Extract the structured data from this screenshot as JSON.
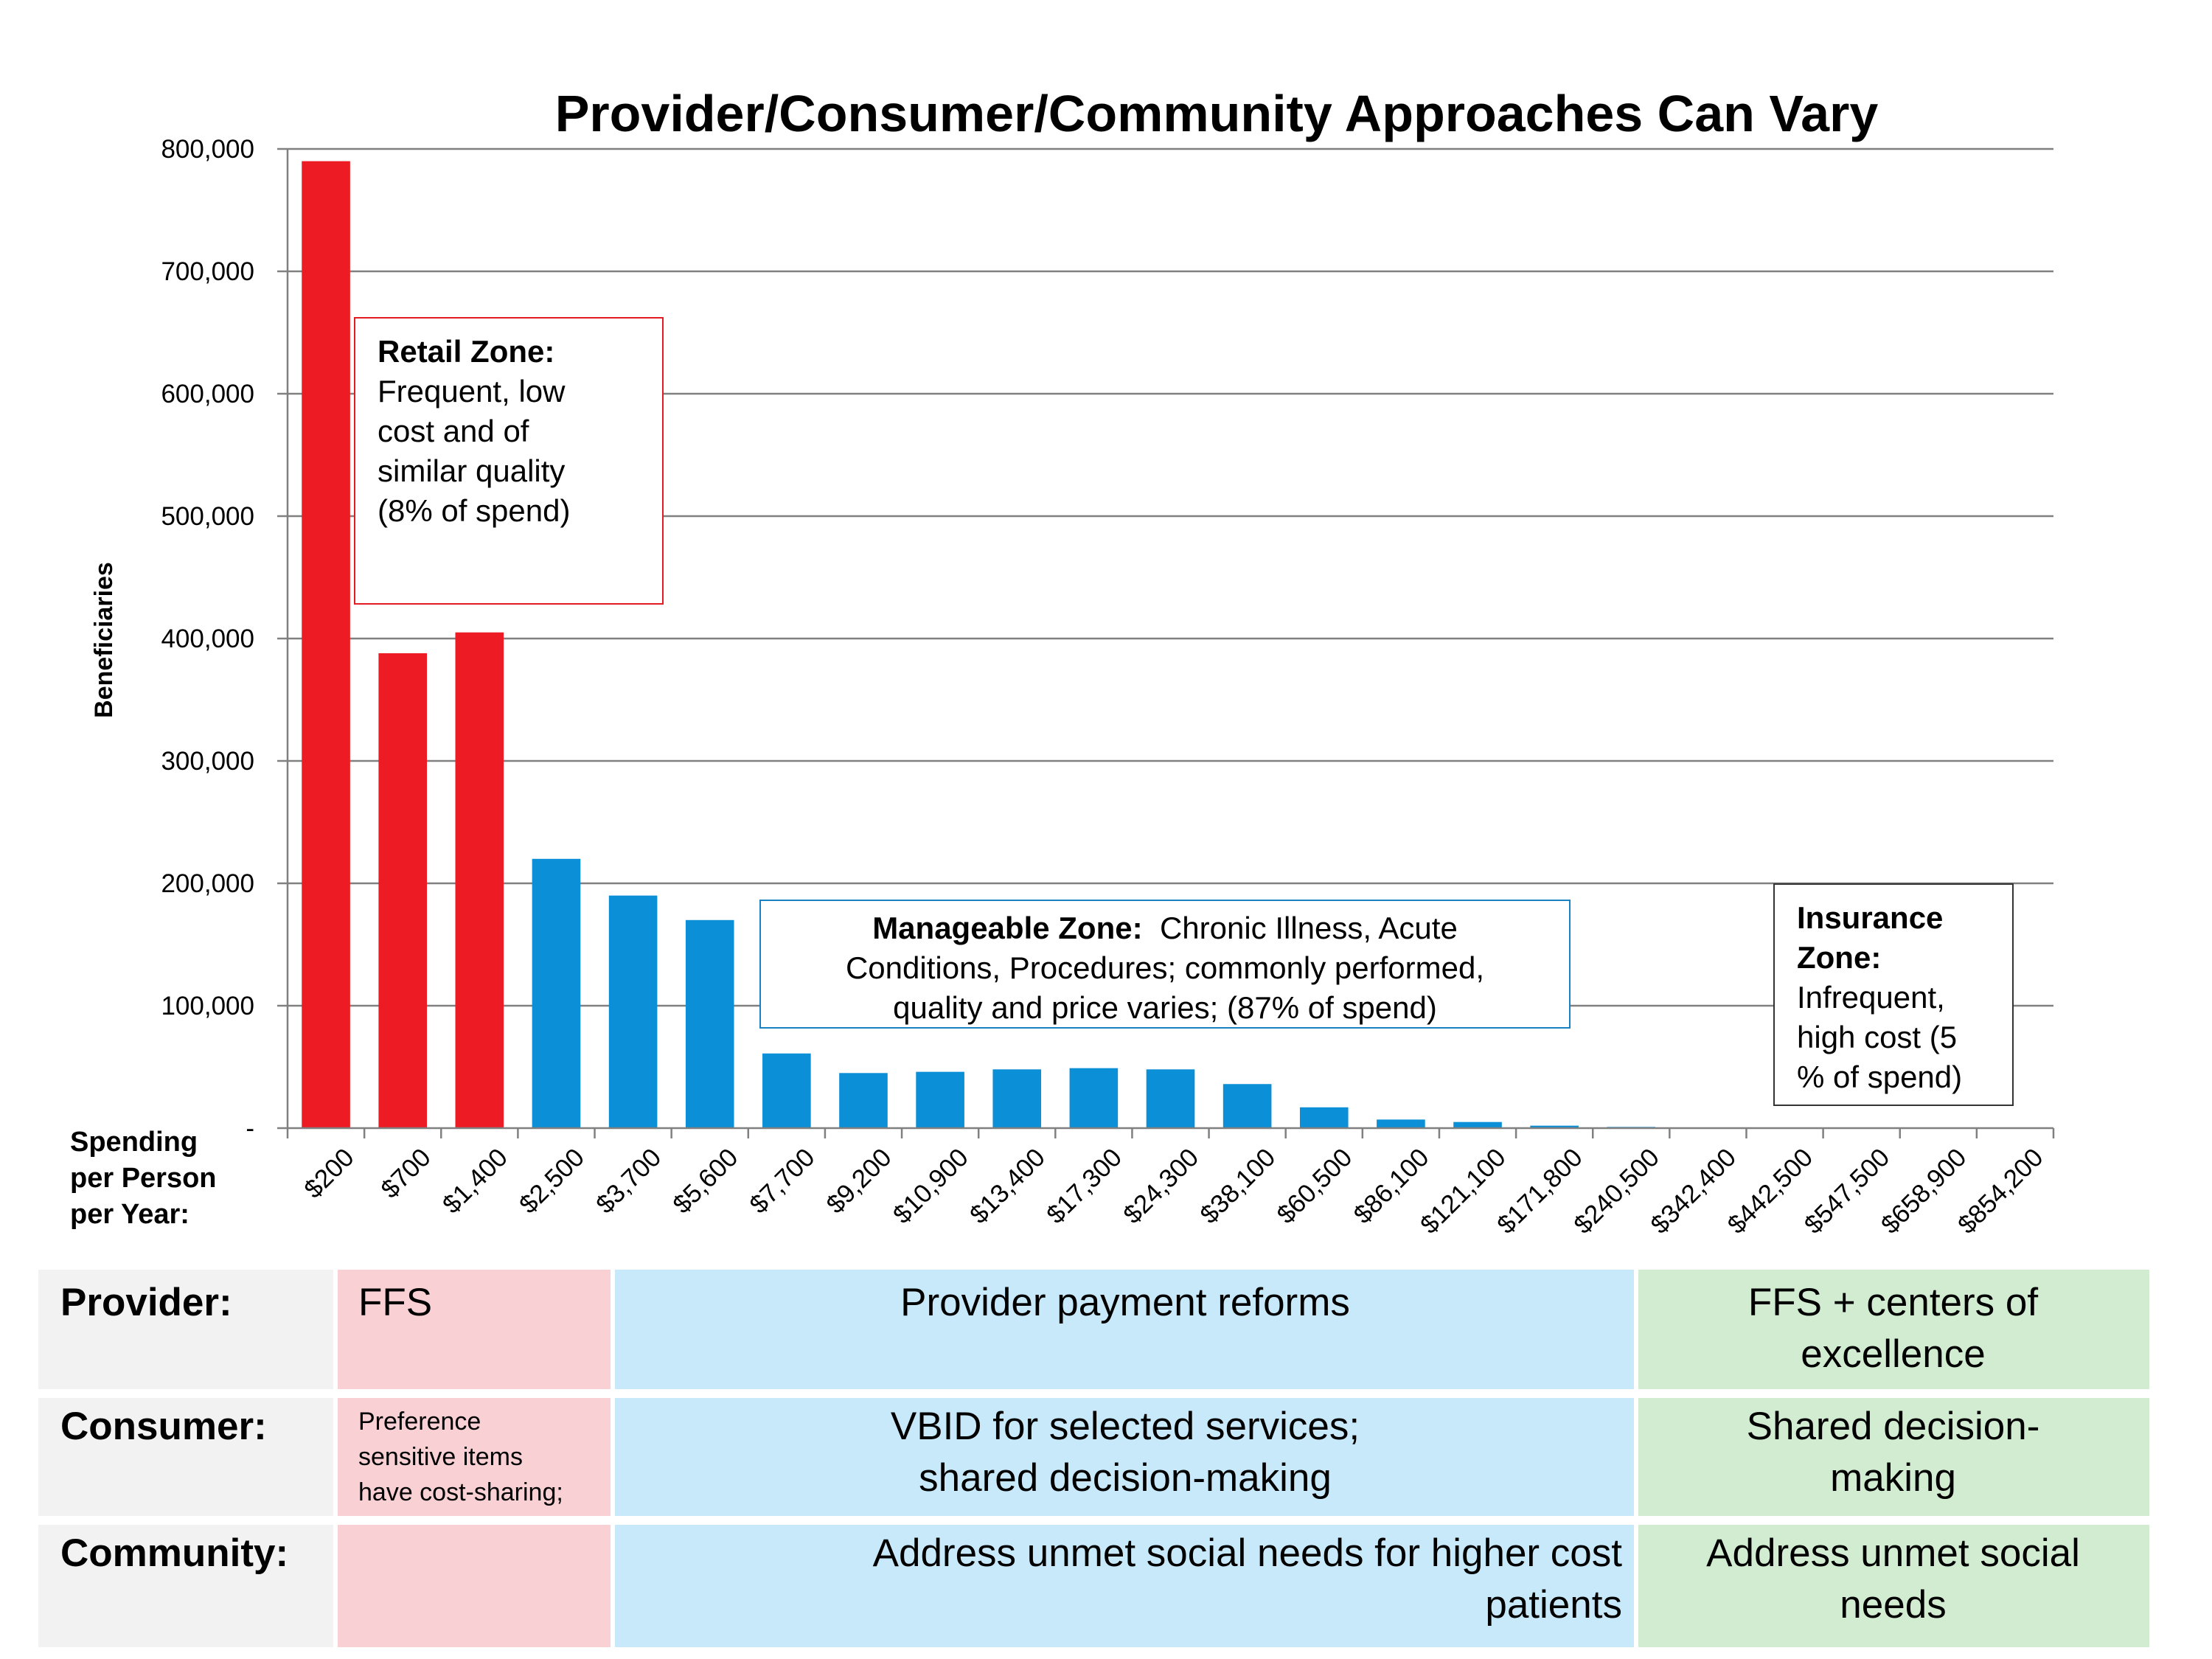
{
  "chart_data": {
    "type": "bar",
    "title": "Provider/Consumer/Community Approaches Can Vary",
    "ylabel": "Beneficiaries",
    "xlabel": "Spending per Person per Year:",
    "ylim": [
      0,
      800000
    ],
    "y_ticks": [
      "-",
      "100,000",
      "200,000",
      "300,000",
      "400,000",
      "500,000",
      "600,000",
      "700,000",
      "800,000"
    ],
    "grid": true,
    "categories": [
      "$200",
      "$700",
      "$1,400",
      "$2,500",
      "$3,700",
      "$5,600",
      "$7,700",
      "$9,200",
      "$10,900",
      "$13,400",
      "$17,300",
      "$24,300",
      "$38,100",
      "$60,500",
      "$86,100",
      "$121,100",
      "$171,800",
      "$240,500",
      "$342,400",
      "$442,500",
      "$547,500",
      "$658,900",
      "$854,200"
    ],
    "values": [
      790000,
      388000,
      405000,
      220000,
      190000,
      170000,
      61000,
      45000,
      46000,
      48000,
      49000,
      48000,
      36000,
      17000,
      7000,
      5000,
      2000,
      1000,
      500,
      300,
      200,
      100,
      50
    ],
    "zones": [
      "retail",
      "retail",
      "retail",
      "manageable",
      "manageable",
      "manageable",
      "manageable",
      "manageable",
      "manageable",
      "manageable",
      "manageable",
      "manageable",
      "manageable",
      "manageable",
      "manageable",
      "manageable",
      "manageable",
      "manageable",
      "insurance",
      "insurance",
      "insurance",
      "insurance",
      "insurance"
    ],
    "colors": {
      "retail": "#ed1c24",
      "manageable": "#0b8fd6",
      "axis": "#808080",
      "grid": "#808080"
    }
  },
  "annotations": {
    "retail": {
      "title": "Retail Zone:",
      "line1": "Frequent, low",
      "line2": "cost and of",
      "line3": "similar quality",
      "line4": "(8% of spend)"
    },
    "manageable": {
      "title": "Manageable  Zone:",
      "text1": "Chronic Illness, Acute",
      "line2": "Conditions, Procedures; commonly performed,",
      "line3": "quality and price varies; (87% of spend)"
    },
    "insurance": {
      "title1": "Insurance",
      "title2": "Zone:",
      "line1": "Infrequent,",
      "line2": "high cost  (5",
      "line3": "% of spend)"
    }
  },
  "spending_label": {
    "line1": "Spending",
    "line2": "per Person",
    "line3": "per Year:"
  },
  "table": {
    "provider": {
      "label": "Provider:",
      "retail": "FFS",
      "manageable": "Provider payment reforms",
      "insurance_1": "FFS + centers of",
      "insurance_2": "excellence"
    },
    "consumer": {
      "label": "Consumer:",
      "retail_1": "Preference",
      "retail_2": "sensitive items",
      "retail_3": "have cost-sharing;",
      "manageable_1": "VBID for selected services;",
      "manageable_2": "shared decision-making",
      "insurance_1": "Shared decision-",
      "insurance_2": "making"
    },
    "community": {
      "label": "Community:",
      "retail": "",
      "manageable_1": "Address unmet social needs for higher cost",
      "manageable_2": "patients",
      "insurance_1": "Address unmet social",
      "insurance_2": "needs"
    }
  }
}
